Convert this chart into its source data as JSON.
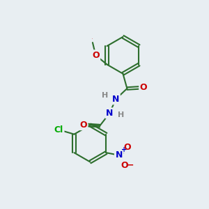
{
  "background_color": "#e8eef2",
  "bond_color": "#2d6e2d",
  "atom_colors": {
    "O": "#cc0000",
    "N": "#0000cc",
    "Cl": "#00aa00",
    "H": "#888888",
    "C": "#2d6e2d"
  },
  "figsize": [
    3.0,
    3.0
  ],
  "dpi": 100
}
